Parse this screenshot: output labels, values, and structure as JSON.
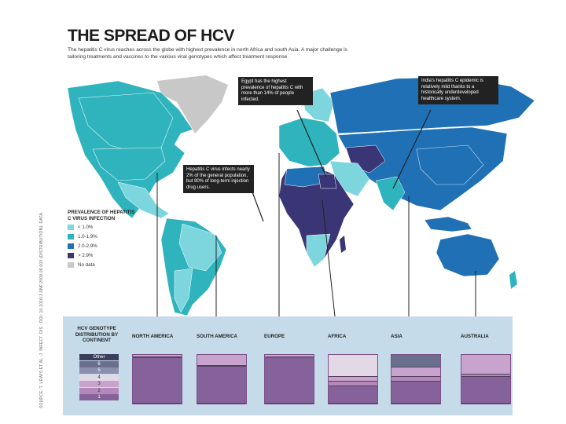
{
  "title": "THE SPREAD OF HCV",
  "subtitle": "The hepatitis C virus reaches across the globe with highest prevalence in north Africa and south Asia. A major challenge is tailoring treatments and vaccines to the various viral genotypes which affect treatment response.",
  "source": "SOURCE: T. LEWIS ET AL. J. INFECT. DIS.; DOI: 10.1016/J.JINF.2009.09.003 (DISTRIBUTION); DATA",
  "callouts": {
    "egypt": "Egypt has the highest prevalence of hepatitis C with more than 14% of people infected.",
    "india": "India's hepatitis C epidemic is relatively mild thanks to a historically underdeveloped healthcare system.",
    "drug_users": "Hepatitis C virus infects nearly 2% of the general population, but 90% of long-term injection drug users."
  },
  "legend": {
    "title": "PREVALENCE OF HEPATITIS C VIRUS INFECTION",
    "items": [
      {
        "label": "< 1.0%",
        "color": "#7dd6de"
      },
      {
        "label": "1.0-1.9%",
        "color": "#2fb3bd"
      },
      {
        "label": "2.0-2.9%",
        "color": "#1f70b5"
      },
      {
        "label": "> 2.9%",
        "color": "#3a3575"
      },
      {
        "label": "No data",
        "color": "#c8c8c8"
      }
    ]
  },
  "genotype": {
    "title": "HCV GENOTYPE DISTRIBUTION BY CONTINENT",
    "key": [
      {
        "label": "Other",
        "color": "#3b3f5e"
      },
      {
        "label": "6",
        "color": "#6a6f8e"
      },
      {
        "label": "5",
        "color": "#8a8fb0"
      },
      {
        "label": "4",
        "color": "#e3d8e5"
      },
      {
        "label": "3",
        "color": "#c7a3cd"
      },
      {
        "label": "2",
        "color": "#b489b9"
      },
      {
        "label": "1",
        "color": "#86629a"
      }
    ],
    "regions": [
      {
        "name": "NORTH AMERICA",
        "segments": [
          {
            "g": "3",
            "pct": 5
          },
          {
            "g": "2",
            "pct": 2
          },
          {
            "g": "1",
            "pct": 93
          }
        ]
      },
      {
        "name": "SOUTH AMERICA",
        "segments": [
          {
            "g": "3",
            "pct": 22
          },
          {
            "g": "2",
            "pct": 3
          },
          {
            "g": "1",
            "pct": 75
          }
        ]
      },
      {
        "name": "EUROPE",
        "segments": [
          {
            "g": "4",
            "pct": 3
          },
          {
            "g": "3",
            "pct": 3
          },
          {
            "g": "1",
            "pct": 94
          }
        ]
      },
      {
        "name": "AFRICA",
        "segments": [
          {
            "g": "4",
            "pct": 45
          },
          {
            "g": "3",
            "pct": 10
          },
          {
            "g": "2",
            "pct": 10
          },
          {
            "g": "1",
            "pct": 35
          }
        ]
      },
      {
        "name": "ASIA",
        "segments": [
          {
            "g": "6",
            "pct": 25
          },
          {
            "g": "3",
            "pct": 20
          },
          {
            "g": "2",
            "pct": 10
          },
          {
            "g": "1",
            "pct": 45
          }
        ]
      },
      {
        "name": "AUSTRALIA",
        "segments": [
          {
            "g": "3",
            "pct": 40
          },
          {
            "g": "2",
            "pct": 5
          },
          {
            "g": "1",
            "pct": 55
          }
        ]
      }
    ]
  }
}
